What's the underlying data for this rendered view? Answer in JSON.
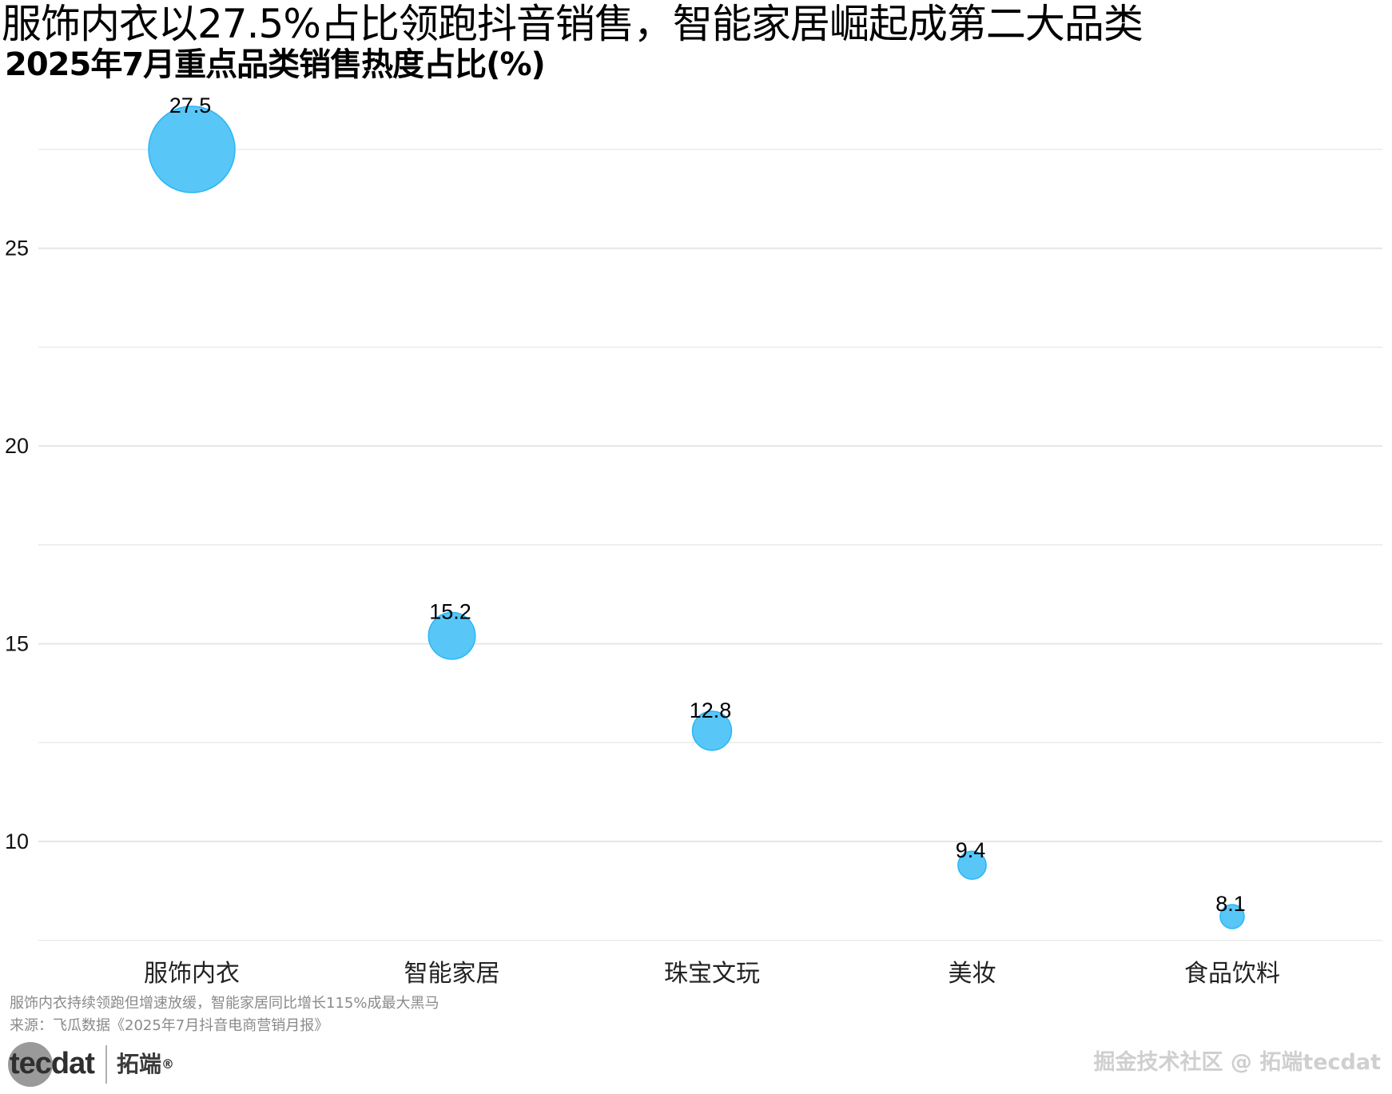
{
  "title": "服饰内衣以27.5%占比领跑抖音销售，智能家居崛起成第二大品类",
  "subtitle": "2025年7月重点品类销售热度占比(%)",
  "caption": "服饰内衣持续领跑但增速放缓，智能家居同比增长115%成最大黑马",
  "source": "来源：飞瓜数据《2025年7月抖音电商营销月报》",
  "brand": {
    "logo_text": "tecdat",
    "name_cn": "拓端",
    "reg_mark": "®"
  },
  "watermark": "掘金技术社区 @ 拓端tecdat",
  "colors": {
    "bubble": "#4fc3f7",
    "bubble_stroke": "#29b6f6",
    "grid": "#e6e6e6",
    "text": "#000000",
    "note": "#8a8a8a"
  },
  "chart_data": {
    "type": "scatter",
    "categories": [
      "服饰内衣",
      "智能家居",
      "珠宝文玩",
      "美妆",
      "食品饮料"
    ],
    "values": [
      27.5,
      15.2,
      12.8,
      9.4,
      8.1
    ],
    "data_labels": [
      "27.5",
      "15.2",
      "12.8",
      "9.4",
      "8.1"
    ],
    "bubble_size_by": "value",
    "xlabel": "",
    "ylabel": "",
    "yticks": [
      10,
      15,
      20,
      25
    ],
    "ylim": [
      7.5,
      28.5
    ],
    "grid": true,
    "legend": "none"
  }
}
